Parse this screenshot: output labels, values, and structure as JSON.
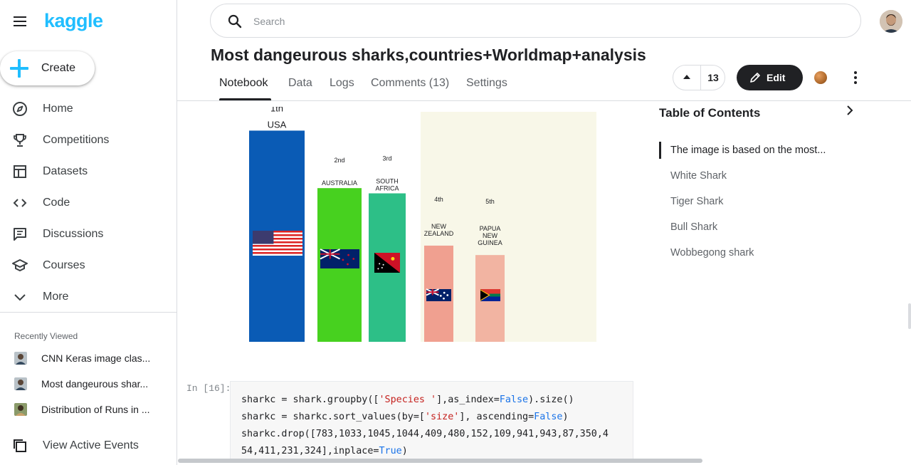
{
  "sidebar": {
    "logo": "kaggle",
    "create_label": "Create",
    "nav": [
      {
        "label": "Home",
        "icon": "compass-icon"
      },
      {
        "label": "Competitions",
        "icon": "trophy-icon"
      },
      {
        "label": "Datasets",
        "icon": "table-icon"
      },
      {
        "label": "Code",
        "icon": "code-icon"
      },
      {
        "label": "Discussions",
        "icon": "comments-icon"
      },
      {
        "label": "Courses",
        "icon": "school-icon"
      },
      {
        "label": "More",
        "icon": "chevron-down-icon"
      }
    ],
    "recently_viewed_title": "Recently Viewed",
    "recent": [
      {
        "label": "CNN Keras image clas..."
      },
      {
        "label": "Most dangeurous shar..."
      },
      {
        "label": "Distribution of Runs in ..."
      }
    ],
    "active_events_label": "View Active Events"
  },
  "search": {
    "placeholder": "Search",
    "value": ""
  },
  "notebook": {
    "title": "Most dangeurous sharks,countries+Worldmap+analysis",
    "tabs": [
      {
        "label": "Notebook",
        "active": true
      },
      {
        "label": "Data"
      },
      {
        "label": "Logs"
      },
      {
        "label": "Comments (13)"
      },
      {
        "label": "Settings"
      }
    ],
    "votes": "13",
    "edit_label": "Edit"
  },
  "chart_data": {
    "type": "bar",
    "categories": [
      "USA",
      "AUSTRALIA",
      "SOUTH AFRICA",
      "NEW ZEALAND",
      "PAPUA NEW GUINEA"
    ],
    "rank_labels": [
      "1th",
      "2nd",
      "3rd",
      "4th",
      "5th"
    ],
    "values": [
      202,
      147,
      142,
      92,
      83
    ],
    "bar_colors": [
      "#0a5bb5",
      "#47d11f",
      "#2dbf87",
      "#f0a090",
      "#f2b4a2"
    ],
    "highlight_background": "#f8f7e8",
    "ylim": [
      0,
      220
    ]
  },
  "code_cell": {
    "prompt": "In [16]:",
    "lines": [
      "sharkc = shark.groupby(['Species '],as_index=False).size()",
      "sharkc = sharkc.sort_values(by=['size'], ascending=False)",
      "sharkc.drop([783,1033,1045,1044,409,480,152,109,941,943,87,350,4",
      "54,411,231,324],inplace=True)"
    ]
  },
  "toc": {
    "title": "Table of Contents",
    "items": [
      {
        "label": "The image is based on the most...",
        "active": true
      },
      {
        "label": "White Shark"
      },
      {
        "label": "Tiger Shark"
      },
      {
        "label": "Bull Shark"
      },
      {
        "label": "Wobbegong shark"
      }
    ]
  }
}
